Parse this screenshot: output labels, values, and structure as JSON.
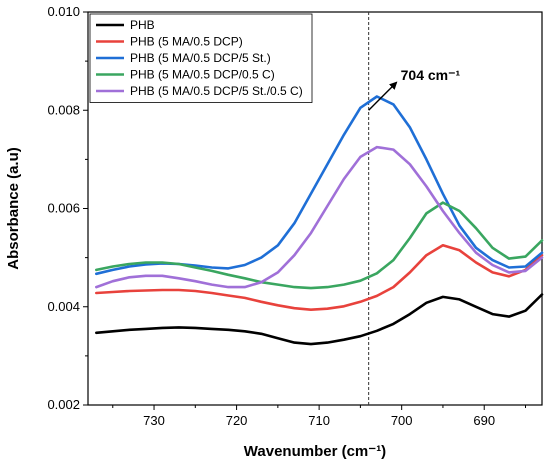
{
  "chart_data": {
    "type": "line",
    "xlabel": "Wavenumber (cm⁻¹)",
    "ylabel": "Absorbance (a.u)",
    "xlim": [
      738,
      683
    ],
    "ylim": [
      0.002,
      0.01
    ],
    "x_reversed": true,
    "xticks": [
      730,
      720,
      710,
      700,
      690
    ],
    "yticks": [
      0.002,
      0.004,
      0.006,
      0.008,
      0.01
    ],
    "ytick_labels": [
      "0.002",
      "0.004",
      "0.006",
      "0.008",
      "0.010"
    ],
    "grid": false,
    "legend_position": "top-left",
    "annotation": {
      "text": "704 cm⁻¹",
      "x": 704
    },
    "x": [
      737,
      735,
      733,
      731,
      729,
      727,
      725,
      723,
      721,
      719,
      717,
      715,
      713,
      711,
      709,
      707,
      705,
      703,
      701,
      699,
      697,
      695,
      693,
      691,
      689,
      687,
      685,
      683
    ],
    "series": [
      {
        "name": "PHB",
        "color": "#000000",
        "values": [
          0.00347,
          0.0035,
          0.00353,
          0.00355,
          0.00357,
          0.00358,
          0.00357,
          0.00355,
          0.00353,
          0.0035,
          0.00345,
          0.00336,
          0.00327,
          0.00324,
          0.00327,
          0.00333,
          0.0034,
          0.00351,
          0.00365,
          0.00385,
          0.00408,
          0.0042,
          0.00415,
          0.004,
          0.00385,
          0.0038,
          0.00392,
          0.00425
        ]
      },
      {
        "name": "PHB (5 MA/0.5 DCP)",
        "color": "#e8423c",
        "values": [
          0.00428,
          0.0043,
          0.00432,
          0.00433,
          0.00434,
          0.00434,
          0.00432,
          0.00428,
          0.00423,
          0.00418,
          0.0041,
          0.00403,
          0.00397,
          0.00394,
          0.00396,
          0.00401,
          0.0041,
          0.00422,
          0.0044,
          0.0047,
          0.00505,
          0.00525,
          0.00515,
          0.0049,
          0.0047,
          0.00462,
          0.00475,
          0.00505
        ]
      },
      {
        "name": "PHB (5 MA/0.5 DCP/5 St.)",
        "color": "#1f6fd6",
        "values": [
          0.00467,
          0.00475,
          0.00482,
          0.00486,
          0.00488,
          0.00487,
          0.00484,
          0.0048,
          0.00478,
          0.00485,
          0.005,
          0.00525,
          0.0057,
          0.0063,
          0.0069,
          0.0075,
          0.00805,
          0.00828,
          0.00812,
          0.00765,
          0.007,
          0.0063,
          0.00565,
          0.0052,
          0.00495,
          0.0048,
          0.00482,
          0.0051
        ]
      },
      {
        "name": "PHB (5 MA/0.5 DCP/0.5 C)",
        "color": "#3aa660",
        "values": [
          0.00475,
          0.00482,
          0.00487,
          0.0049,
          0.0049,
          0.00487,
          0.0048,
          0.00473,
          0.00465,
          0.00458,
          0.0045,
          0.00445,
          0.0044,
          0.00438,
          0.0044,
          0.00445,
          0.00453,
          0.00468,
          0.00495,
          0.0054,
          0.0059,
          0.00612,
          0.00595,
          0.0056,
          0.0052,
          0.00498,
          0.00502,
          0.00535
        ]
      },
      {
        "name": "PHB (5 MA/0.5 DCP/5 St./0.5 C)",
        "color": "#a070d8",
        "values": [
          0.0044,
          0.00452,
          0.0046,
          0.00463,
          0.00463,
          0.00458,
          0.00452,
          0.00445,
          0.0044,
          0.0044,
          0.0045,
          0.0047,
          0.00505,
          0.0055,
          0.00605,
          0.0066,
          0.00705,
          0.00725,
          0.0072,
          0.0069,
          0.00645,
          0.00595,
          0.0055,
          0.0051,
          0.00485,
          0.0047,
          0.00473,
          0.005
        ]
      }
    ]
  }
}
